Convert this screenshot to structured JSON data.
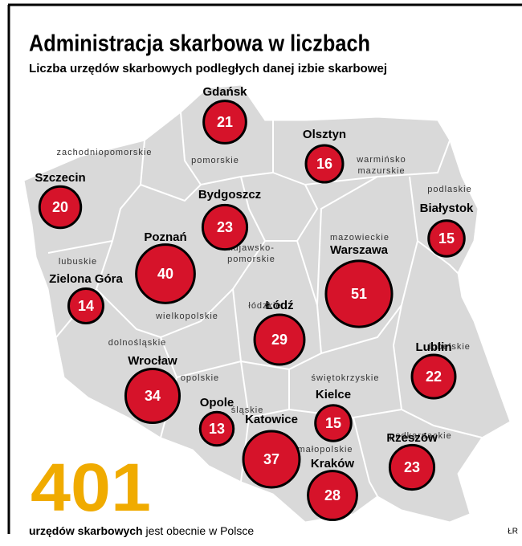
{
  "header": {
    "title": "Administracja skarbowa w liczbach",
    "subtitle": "Liczba urzędów skarbowych podległych danej izbie skarbowej"
  },
  "cities": [
    {
      "name": "Gdańsk",
      "value": 21
    },
    {
      "name": "Olsztyn",
      "value": 16
    },
    {
      "name": "Szczecin",
      "value": 20
    },
    {
      "name": "Bydgoszcz",
      "value": 23
    },
    {
      "name": "Białystok",
      "value": 15
    },
    {
      "name": "Poznań",
      "value": 40
    },
    {
      "name": "Warszawa",
      "value": 51
    },
    {
      "name": "Zielona Góra",
      "value": 14
    },
    {
      "name": "Łódź",
      "value": 29
    },
    {
      "name": "Lublin",
      "value": 22
    },
    {
      "name": "Wrocław",
      "value": 34
    },
    {
      "name": "Opole",
      "value": 13
    },
    {
      "name": "Kielce",
      "value": 15
    },
    {
      "name": "Katowice",
      "value": 37
    },
    {
      "name": "Rzeszów",
      "value": 23
    },
    {
      "name": "Kraków",
      "value": 28
    }
  ],
  "regions": [
    [
      "zachodniopomorskie"
    ],
    [
      "pomorskie"
    ],
    [
      "warmińsko",
      "mazurskie"
    ],
    [
      "podlaskie"
    ],
    [
      "mazowieckie"
    ],
    [
      "kujawsko-",
      "pomorskie"
    ],
    [
      "lubuskie"
    ],
    [
      "wielkopolskie"
    ],
    [
      "łódzkie"
    ],
    [
      "dolnośląskie"
    ],
    [
      "lubelskie"
    ],
    [
      "opolskie"
    ],
    [
      "świętokrzyskie"
    ],
    [
      "śląskie"
    ],
    [
      "małopolskie"
    ],
    [
      "podkarpackie"
    ]
  ],
  "total": {
    "value": 401,
    "bold": "urzędów skarbowych",
    "rest": " jest obecnie w Polsce"
  },
  "credit": "ŁR"
}
